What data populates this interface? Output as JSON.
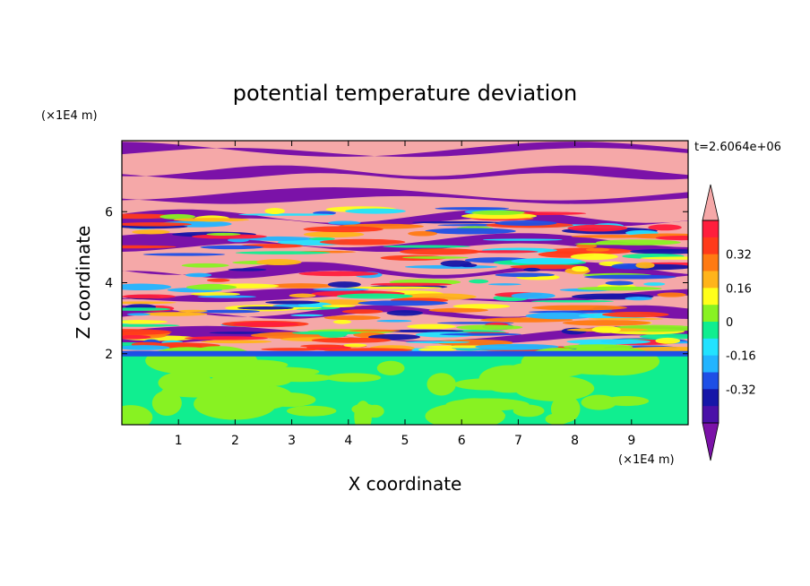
{
  "chart_data": {
    "type": "heatmap",
    "title": "potential temperature deviation",
    "xlabel": "X coordinate",
    "ylabel": "Z coordinate",
    "x_unit": "(×1E4 m)",
    "y_unit": "(×1E4 m)",
    "time_label": "t=2.6064e+06",
    "xlim": [
      0,
      10
    ],
    "ylim": [
      0,
      8
    ],
    "x_ticks": [
      "1",
      "2",
      "3",
      "4",
      "5",
      "6",
      "7",
      "8",
      "9"
    ],
    "y_ticks": [
      "2",
      "4",
      "6"
    ],
    "colorbar": {
      "levels": [
        -0.48,
        -0.4,
        -0.32,
        -0.24,
        -0.16,
        -0.08,
        0,
        0.08,
        0.16,
        0.24,
        0.32,
        0.4,
        0.48
      ],
      "colors": [
        "#7b12a8",
        "#4a10a8",
        "#1616a8",
        "#1e4fe6",
        "#22b4ff",
        "#22e2ff",
        "#10ee90",
        "#88f222",
        "#ffff1a",
        "#ffb41a",
        "#ff7a12",
        "#ff3a1a",
        "#ff1e3c",
        "#f5a8a8"
      ],
      "tick_labels": [
        "0.32",
        "0.16",
        "0",
        "-0.16",
        "-0.32"
      ],
      "extend": "both"
    },
    "regions": [
      {
        "z_range": [
          0,
          2.0
        ],
        "description": "lower layer near zero, mix of 0 to 0.08 (green / light green)"
      },
      {
        "z_range": [
          2.0,
          7.8
        ],
        "description": "alternating horizontal bands of strong positive (pink, >0.48) and strong negative (purple, <-0.48) deviations with turbulent mixing"
      }
    ]
  }
}
